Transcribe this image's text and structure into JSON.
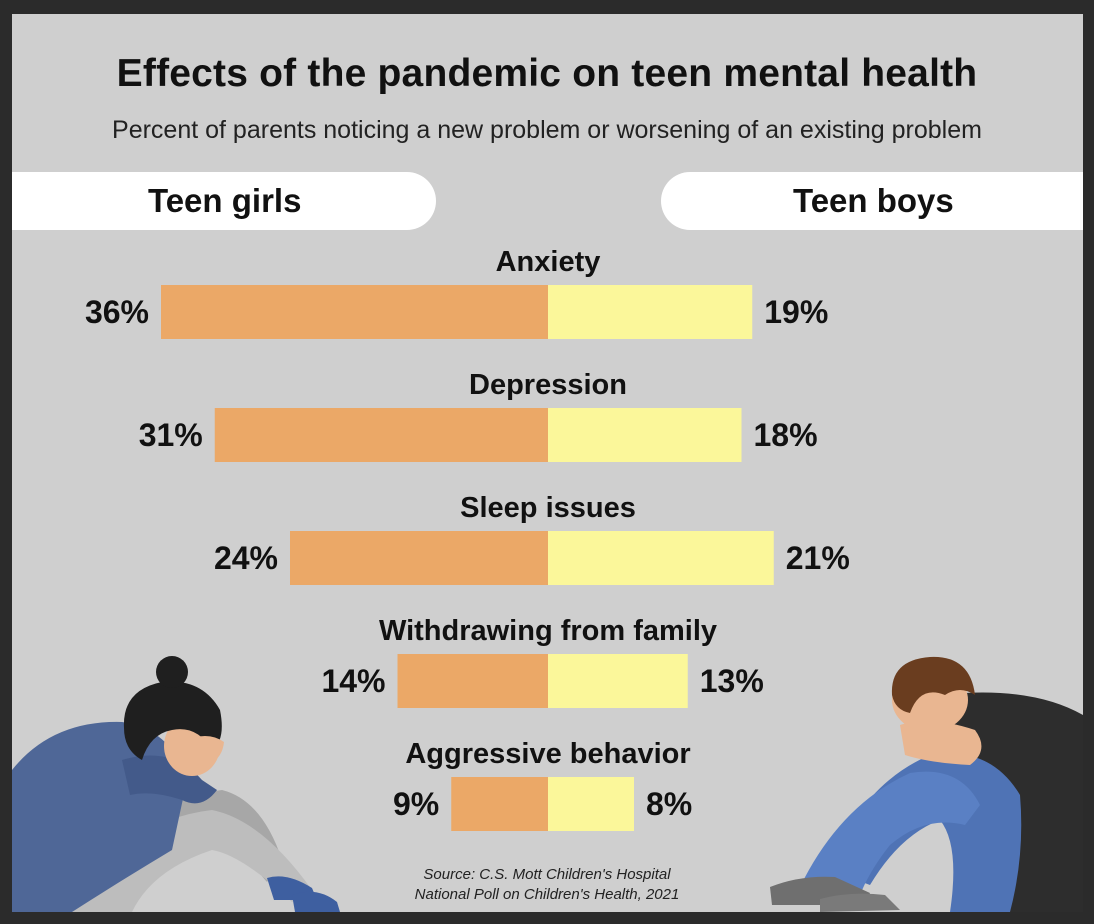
{
  "title": "Effects of the pandemic on teen mental health",
  "subtitle": "Percent of parents noticing a new problem or worsening of an existing problem",
  "groups": {
    "left": "Teen girls",
    "right": "Teen boys"
  },
  "colors": {
    "girls": "#eba867",
    "boys": "#fbf79a",
    "background": "#cfcfcf",
    "frame": "#2b2b2b"
  },
  "source": {
    "line1": "Source: C.S. Mott Children's Hospital",
    "line2": "National Poll on Children's Health, 2021"
  },
  "illustrations": {
    "left": "teen-girl-illustration",
    "right": "teen-boy-illustration"
  },
  "chart_data": {
    "type": "bar",
    "orientation": "diverging-horizontal",
    "unit": "%",
    "categories": [
      "Anxiety",
      "Depression",
      "Sleep issues",
      "Withdrawing from family",
      "Aggressive behavior"
    ],
    "series": [
      {
        "name": "Teen girls",
        "values": [
          36,
          31,
          24,
          14,
          9
        ],
        "labels": [
          "36%",
          "31%",
          "24%",
          "14%",
          "9%"
        ]
      },
      {
        "name": "Teen boys",
        "values": [
          19,
          18,
          21,
          13,
          8
        ],
        "labels": [
          "19%",
          "18%",
          "21%",
          "13%",
          "8%"
        ]
      }
    ]
  }
}
